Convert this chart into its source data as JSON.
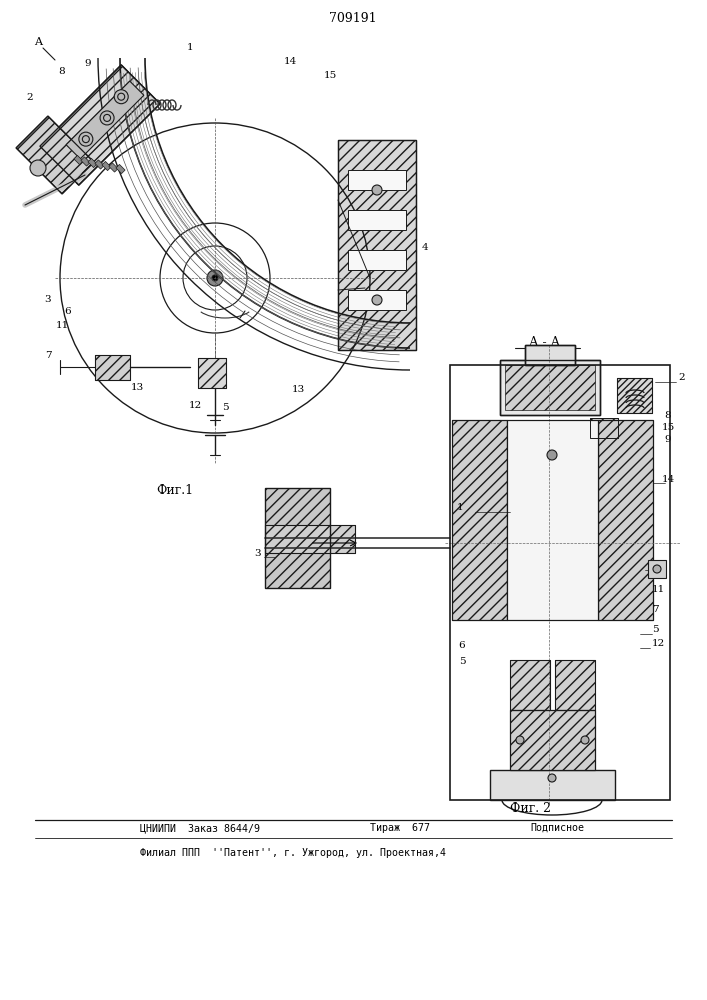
{
  "patent_number": "709191",
  "fig1_label": "Фиг.1",
  "fig2_label": "Фиг. 2",
  "section_label": "А - А",
  "footer_line1": "ЦНИИПИ  Заказ 8644/9",
  "footer_col2": "Тираж  677",
  "footer_col3": "Подписное",
  "footer_line2": "Филиал ППП  ''Патент'', г. Ужгород, ул. Проектная,4",
  "bg_color": "#ffffff",
  "line_color": "#1a1a1a",
  "fig_width": 7.07,
  "fig_height": 10.0,
  "dpi": 100
}
